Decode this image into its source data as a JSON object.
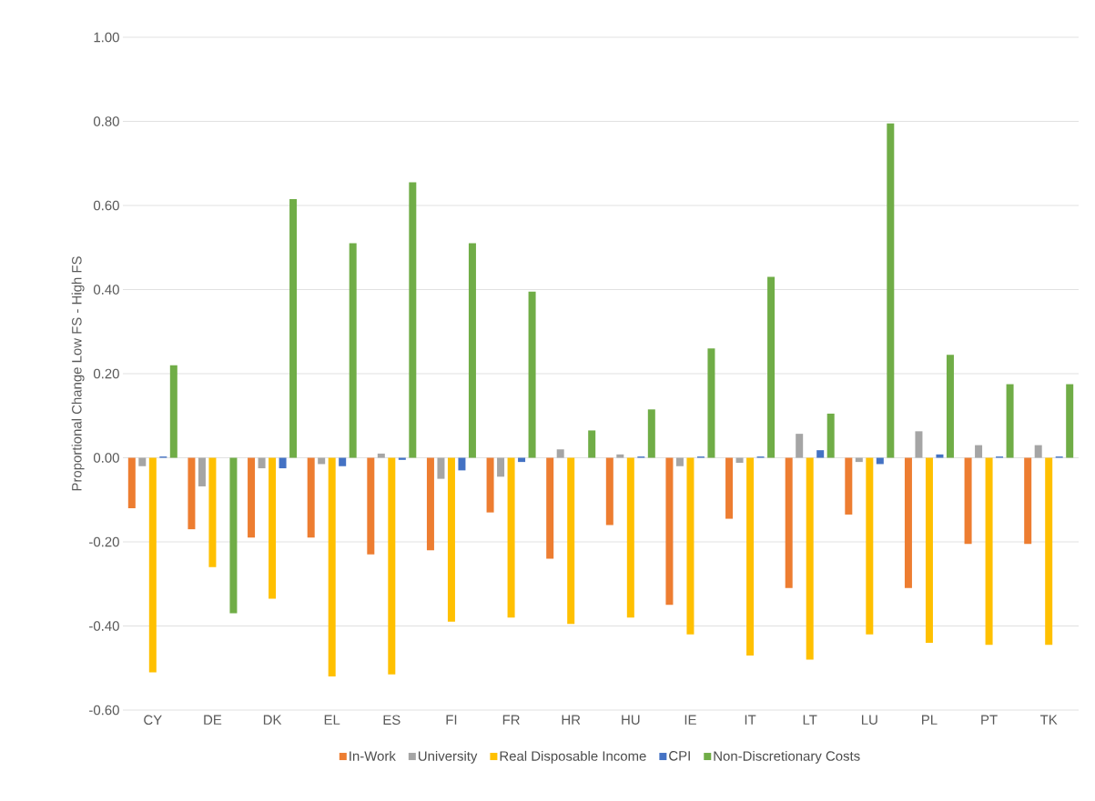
{
  "chart_data": {
    "type": "bar",
    "ylabel": "Proportional Change Low FS - High FS",
    "categories": [
      "CY",
      "DE",
      "DK",
      "EL",
      "ES",
      "FI",
      "FR",
      "HR",
      "HU",
      "IE",
      "IT",
      "LT",
      "LU",
      "PL",
      "PT",
      "TK"
    ],
    "series": [
      {
        "name": "In-Work",
        "color": "#ed7d31",
        "values": [
          -0.12,
          -0.17,
          -0.19,
          -0.19,
          -0.23,
          -0.22,
          -0.13,
          -0.24,
          -0.16,
          -0.35,
          -0.145,
          -0.31,
          -0.135,
          -0.31,
          -0.205,
          -0.205
        ]
      },
      {
        "name": "University",
        "color": "#a5a5a5",
        "values": [
          -0.02,
          -0.068,
          -0.025,
          -0.015,
          0.01,
          -0.05,
          -0.045,
          0.02,
          0.008,
          -0.02,
          -0.012,
          0.057,
          -0.01,
          0.063,
          0.03,
          0.03
        ]
      },
      {
        "name": "Real Disposable Income",
        "color": "#ffc000",
        "values": [
          -0.51,
          -0.26,
          -0.335,
          -0.52,
          -0.515,
          -0.39,
          -0.38,
          -0.395,
          -0.38,
          -0.42,
          -0.47,
          -0.48,
          -0.42,
          -0.44,
          -0.445,
          -0.445
        ]
      },
      {
        "name": "CPI",
        "color": "#4472c4",
        "values": [
          0.003,
          0.0,
          -0.025,
          -0.02,
          -0.005,
          -0.03,
          -0.01,
          0.0,
          0.003,
          0.003,
          0.003,
          0.018,
          -0.015,
          0.008,
          0.003,
          0.003
        ]
      },
      {
        "name": "Non-Discretionary Costs",
        "color": "#70ad47",
        "values": [
          0.22,
          -0.37,
          0.615,
          0.51,
          0.655,
          0.51,
          0.395,
          0.065,
          0.115,
          0.26,
          0.43,
          0.105,
          0.795,
          0.245,
          0.175,
          0.175
        ]
      }
    ],
    "ylim": [
      -0.6,
      1.0
    ],
    "yticks": [
      {
        "value": -0.6,
        "label": "-0.60"
      },
      {
        "value": -0.4,
        "label": "-0.40"
      },
      {
        "value": -0.2,
        "label": "-0.20"
      },
      {
        "value": 0,
        "label": "0.00"
      },
      {
        "value": 0.2,
        "label": "0.20"
      },
      {
        "value": 0.4,
        "label": "0.40"
      },
      {
        "value": 0.6,
        "label": "0.60"
      },
      {
        "value": 0.8,
        "label": "0.80"
      },
      {
        "value": 1.0,
        "label": "1.00"
      }
    ],
    "grid": "y",
    "legend": "bottom"
  }
}
